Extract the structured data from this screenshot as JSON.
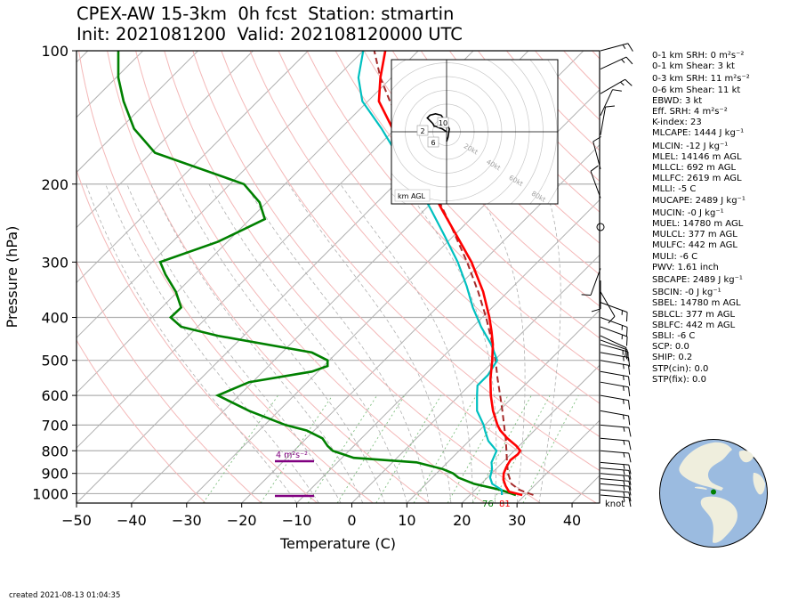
{
  "title": {
    "line1": "CPEX-AW 15-3km  0h fcst  Station: stmartin",
    "line2": "Init: 2021081200  Valid: 202108120000 UTC"
  },
  "chart_data": {
    "type": "skew-t",
    "xlabel": "Temperature (C)",
    "ylabel": "Pressure (hPa)",
    "xlim": [
      -50,
      45
    ],
    "ylim": [
      1050,
      100
    ],
    "y_scale": "log",
    "x_ticks": [
      "−50",
      "−40",
      "−30",
      "−20",
      "−10",
      "0",
      "10",
      "20",
      "30",
      "40"
    ],
    "y_ticks": [
      "100",
      "200",
      "300",
      "400",
      "500",
      "600",
      "700",
      "800",
      "900",
      "1000"
    ],
    "grid": true,
    "temperature_profile": {
      "color": "#ff0000",
      "points": [
        [
          1007,
          29.5
        ],
        [
          990,
          26.5
        ],
        [
          960,
          24.8
        ],
        [
          930,
          23.3
        ],
        [
          900,
          22.2
        ],
        [
          870,
          21.5
        ],
        [
          840,
          21.0
        ],
        [
          815,
          21.3
        ],
        [
          800,
          21.1
        ],
        [
          780,
          19.5
        ],
        [
          750,
          16.5
        ],
        [
          720,
          13.8
        ],
        [
          700,
          12.3
        ],
        [
          650,
          8.9
        ],
        [
          600,
          5.7
        ],
        [
          550,
          2.6
        ],
        [
          500,
          -0.4
        ],
        [
          460,
          -3.2
        ],
        [
          430,
          -5.8
        ],
        [
          400,
          -8.7
        ],
        [
          350,
          -14.5
        ],
        [
          300,
          -22.0
        ],
        [
          260,
          -29.8
        ],
        [
          230,
          -36.5
        ],
        [
          200,
          -44.0
        ],
        [
          170,
          -52.5
        ],
        [
          150,
          -60.5
        ],
        [
          130,
          -68.0
        ],
        [
          115,
          -72.0
        ],
        [
          100,
          -76.0
        ]
      ]
    },
    "dewpoint_profile": {
      "color": "#00c0c0",
      "points": [
        [
          1007,
          25.8
        ],
        [
          980,
          24.8
        ],
        [
          950,
          22.0
        ],
        [
          920,
          20.5
        ],
        [
          880,
          19.3
        ],
        [
          850,
          18.0
        ],
        [
          800,
          16.8
        ],
        [
          760,
          13.5
        ],
        [
          720,
          11.0
        ],
        [
          700,
          9.8
        ],
        [
          650,
          6.0
        ],
        [
          600,
          3.2
        ],
        [
          570,
          1.5
        ],
        [
          540,
          1.5
        ],
        [
          500,
          0.5
        ],
        [
          460,
          -3.5
        ],
        [
          420,
          -8.5
        ],
        [
          380,
          -13.5
        ],
        [
          340,
          -18.5
        ],
        [
          300,
          -24.5
        ],
        [
          260,
          -32.0
        ],
        [
          230,
          -38.5
        ],
        [
          200,
          -46.0
        ],
        [
          170,
          -55.5
        ],
        [
          150,
          -62.5
        ],
        [
          130,
          -71.0
        ],
        [
          115,
          -76.0
        ],
        [
          100,
          -80.0
        ]
      ]
    },
    "parcel_trace": {
      "color": "#a52a2a",
      "style": "dashed",
      "points": [
        [
          1007,
          31.5
        ],
        [
          980,
          28.0
        ],
        [
          950,
          25.5
        ],
        [
          900,
          23.0
        ],
        [
          850,
          20.8
        ],
        [
          800,
          18.6
        ],
        [
          750,
          16.2
        ],
        [
          700,
          13.5
        ],
        [
          650,
          10.6
        ],
        [
          600,
          7.4
        ],
        [
          550,
          3.9
        ],
        [
          500,
          0.2
        ],
        [
          450,
          -4.2
        ],
        [
          400,
          -9.3
        ],
        [
          350,
          -15.4
        ],
        [
          300,
          -22.8
        ],
        [
          250,
          -32.0
        ],
        [
          200,
          -43.5
        ],
        [
          170,
          -52.0
        ],
        [
          150,
          -58.5
        ],
        [
          130,
          -66.0
        ],
        [
          115,
          -72.0
        ],
        [
          100,
          -78.0
        ]
      ]
    },
    "theta_e_profile": {
      "color": "#008000",
      "points": [
        [
          1007,
          349
        ],
        [
          980,
          346
        ],
        [
          950,
          341
        ],
        [
          920,
          338
        ],
        [
          900,
          337
        ],
        [
          880,
          335
        ],
        [
          850,
          330
        ],
        [
          830,
          318
        ],
        [
          800,
          314
        ],
        [
          780,
          313
        ],
        [
          750,
          312
        ],
        [
          720,
          309
        ],
        [
          700,
          305
        ],
        [
          650,
          298
        ],
        [
          600,
          292
        ],
        [
          560,
          298
        ],
        [
          530,
          310
        ],
        [
          515,
          313
        ],
        [
          500,
          313
        ],
        [
          480,
          310
        ],
        [
          440,
          292
        ],
        [
          420,
          285
        ],
        [
          400,
          283
        ],
        [
          380,
          285
        ],
        [
          350,
          284
        ],
        [
          320,
          282
        ],
        [
          300,
          281
        ],
        [
          270,
          292
        ],
        [
          240,
          301
        ],
        [
          220,
          300
        ],
        [
          200,
          297
        ],
        [
          170,
          280
        ],
        [
          150,
          276
        ],
        [
          130,
          274
        ],
        [
          115,
          273
        ],
        [
          100,
          273
        ]
      ]
    },
    "surface_labels": {
      "dewpoint": "76",
      "temperature": "81"
    },
    "helicity_bar_label": "4 m²s⁻²",
    "wind_barbs": [
      {
        "p": 1007,
        "dir": 95,
        "kt": 15
      },
      {
        "p": 980,
        "dir": 95,
        "kt": 15
      },
      {
        "p": 950,
        "dir": 95,
        "kt": 15
      },
      {
        "p": 925,
        "dir": 95,
        "kt": 15
      },
      {
        "p": 900,
        "dir": 95,
        "kt": 15
      },
      {
        "p": 875,
        "dir": 95,
        "kt": 15
      },
      {
        "p": 850,
        "dir": 95,
        "kt": 15
      },
      {
        "p": 800,
        "dir": 95,
        "kt": 15
      },
      {
        "p": 750,
        "dir": 95,
        "kt": 15
      },
      {
        "p": 700,
        "dir": 95,
        "kt": 15
      },
      {
        "p": 650,
        "dir": 100,
        "kt": 15
      },
      {
        "p": 600,
        "dir": 100,
        "kt": 15
      },
      {
        "p": 560,
        "dir": 100,
        "kt": 15
      },
      {
        "p": 530,
        "dir": 100,
        "kt": 15
      },
      {
        "p": 500,
        "dir": 100,
        "kt": 15
      },
      {
        "p": 480,
        "dir": 100,
        "kt": 15
      },
      {
        "p": 460,
        "dir": 105,
        "kt": 15
      },
      {
        "p": 450,
        "dir": 110,
        "kt": 10
      },
      {
        "p": 440,
        "dir": 115,
        "kt": 10
      },
      {
        "p": 420,
        "dir": 110,
        "kt": 15
      },
      {
        "p": 400,
        "dir": 110,
        "kt": 15
      },
      {
        "p": 370,
        "dir": 110,
        "kt": 15
      },
      {
        "p": 350,
        "dir": 150,
        "kt": 10
      },
      {
        "p": 330,
        "dir": 180,
        "kt": 10
      },
      {
        "p": 310,
        "dir": 200,
        "kt": 10
      },
      {
        "p": 250,
        "dir": 0,
        "kt": 0
      },
      {
        "p": 215,
        "dir": 340,
        "kt": 10
      },
      {
        "p": 185,
        "dir": 345,
        "kt": 10
      },
      {
        "p": 155,
        "dir": 10,
        "kt": 10
      },
      {
        "p": 140,
        "dir": 25,
        "kt": 10
      },
      {
        "p": 125,
        "dir": 60,
        "kt": 15
      },
      {
        "p": 110,
        "dir": 65,
        "kt": 15
      },
      {
        "p": 100,
        "dir": 75,
        "kt": 15
      }
    ],
    "wind_unit_label": "knot",
    "hodograph": {
      "label": "km AGL",
      "ring_labels": [
        "20kt",
        "40kt",
        "60kt",
        "80kt"
      ],
      "height_labels": [
        "10",
        "2",
        "6"
      ],
      "points": [
        [
          0,
          0
        ],
        [
          -3,
          2
        ],
        [
          -6,
          3
        ],
        [
          -8,
          4
        ],
        [
          -9,
          4
        ],
        [
          -10,
          6
        ],
        [
          -12,
          8
        ],
        [
          -14,
          10
        ],
        [
          -12,
          12
        ],
        [
          -8,
          13
        ],
        [
          -4,
          12
        ],
        [
          -1,
          8
        ],
        [
          2,
          2
        ],
        [
          1,
          -4
        ],
        [
          0,
          -7
        ]
      ]
    }
  },
  "indices": {
    "srh_01": "0-1 km SRH: 0 m²s⁻²",
    "shear_01": "0-1 km Shear: 3 kt",
    "srh_03": "0-3 km SRH: 11 m²s⁻²",
    "shear_06": "0-6 km Shear: 11 kt",
    "ebwd": "EBWD: 3 kt",
    "eff_srh": "Eff. SRH: 4 m²s⁻²",
    "k_index": "K-index: 23",
    "mlcape": "MLCAPE: 1444 J kg⁻¹",
    "mlcin": "MLCIN: -12 J kg⁻¹",
    "mlel": "MLEL: 14146 m AGL",
    "mllcl": "MLLCL: 692 m AGL",
    "mllfc": "MLLFC: 2619 m AGL",
    "mlli": "MLLI: -5 C",
    "mucape": "MUCAPE: 2489 J kg⁻¹",
    "mucin": "MUCIN: -0 J kg⁻¹",
    "muel": "MUEL: 14780 m AGL",
    "mulcl": "MULCL: 377 m AGL",
    "mulfc": "MULFC: 442 m AGL",
    "muli": "MULI: -6 C",
    "pwv": "PWV: 1.61 inch",
    "sbcape": "SBCAPE: 2489 J kg⁻¹",
    "sbcin": "SBCIN: -0 J kg⁻¹",
    "sbel": "SBEL: 14780 m AGL",
    "sblcl": "SBLCL: 377 m AGL",
    "sblfc": "SBLFC: 442 m AGL",
    "sbli": "SBLI: -6 C",
    "scp": "SCP: 0.0",
    "ship": "SHIP: 0.2",
    "stp_cin": "STP(cin): 0.0",
    "stp_fix": "STP(fix): 0.0"
  },
  "created": "created 2021-08-13 01:04:35",
  "colors": {
    "temperature": "#ff0000",
    "dewpoint": "#00c0c0",
    "parcel": "#a52a2a",
    "theta_e": "#008000",
    "helicity": "#800080",
    "ocean": "#9bbbe0",
    "land": "#efeedd",
    "station": "#008000"
  }
}
